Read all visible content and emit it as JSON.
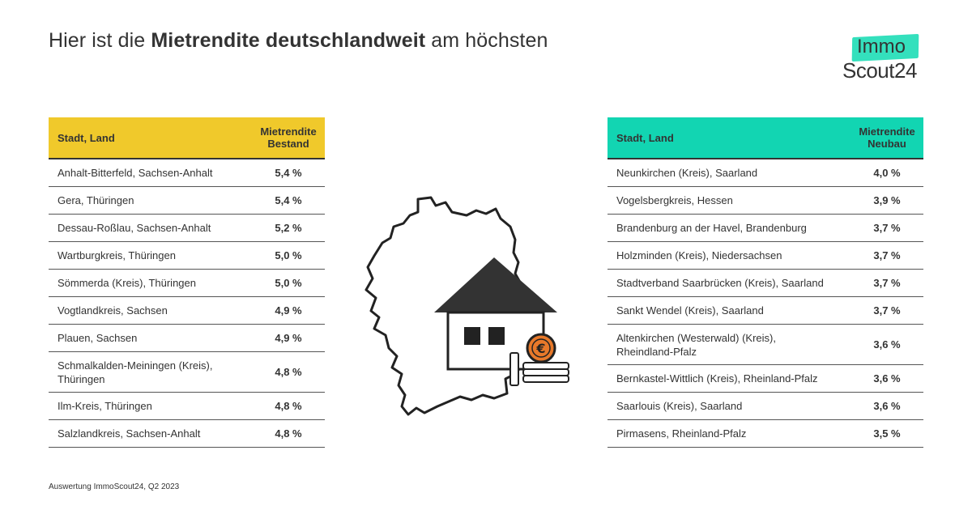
{
  "title": {
    "prefix": "Hier ist die ",
    "bold": "Mietrendite deutschlandweit",
    "suffix": " am höchsten"
  },
  "logo": {
    "line1": "Immo",
    "line2": "Scout24",
    "badge_color": "#34e0bd"
  },
  "colors": {
    "bestand_header": "#f0c92b",
    "neubau_header": "#12d5b2",
    "text": "#333333"
  },
  "table_bestand": {
    "col1_header": "Stadt, Land",
    "col2_header_line1": "Mietrendite",
    "col2_header_line2": "Bestand",
    "rows": [
      {
        "location": "Anhalt-Bitterfeld, Sachsen-Anhalt",
        "value": "5,4 %"
      },
      {
        "location": "Gera, Thüringen",
        "value": "5,4 %"
      },
      {
        "location": "Dessau-Roßlau, Sachsen-Anhalt",
        "value": "5,2 %"
      },
      {
        "location": "Wartburgkreis, Thüringen",
        "value": "5,0 %"
      },
      {
        "location": "Sömmerda (Kreis), Thüringen",
        "value": "5,0 %"
      },
      {
        "location": "Vogtlandkreis, Sachsen",
        "value": "4,9 %"
      },
      {
        "location": "Plauen, Sachsen",
        "value": "4,9 %"
      },
      {
        "location": "Schmalkalden-Meiningen (Kreis), Thüringen",
        "value": "4,8 %"
      },
      {
        "location": "Ilm-Kreis, Thüringen",
        "value": "4,8 %"
      },
      {
        "location": "Salzlandkreis, Sachsen-Anhalt",
        "value": "4,8 %"
      }
    ]
  },
  "table_neubau": {
    "col1_header": "Stadt, Land",
    "col2_header_line1": "Mietrendite",
    "col2_header_line2": "Neubau",
    "rows": [
      {
        "location": "Neunkirchen (Kreis), Saarland",
        "value": "4,0 %"
      },
      {
        "location": "Vogelsbergkreis, Hessen",
        "value": "3,9 %"
      },
      {
        "location": "Brandenburg an der Havel, Brandenburg",
        "value": "3,7 %"
      },
      {
        "location": "Holzminden (Kreis), Niedersachsen",
        "value": "3,7 %"
      },
      {
        "location": "Stadtverband Saarbrücken (Kreis), Saarland",
        "value": "3,7 %"
      },
      {
        "location": "Sankt Wendel (Kreis), Saarland",
        "value": "3,7 %"
      },
      {
        "location": "Altenkirchen (Westerwald) (Kreis), Rheindland-Pfalz",
        "value": "3,6 %"
      },
      {
        "location": "Bernkastel-Wittlich (Kreis), Rheinland-Pfalz",
        "value": "3,6 %"
      },
      {
        "location": "Saarlouis (Kreis), Saarland",
        "value": "3,6 %"
      },
      {
        "location": "Pirmasens, Rheinland-Pfalz",
        "value": "3,5 %"
      }
    ]
  },
  "illustration": {
    "icon": "germany-map-house-euro-icon",
    "coin_symbol": "€"
  },
  "source": "Auswertung ImmoScout24, Q2 2023"
}
